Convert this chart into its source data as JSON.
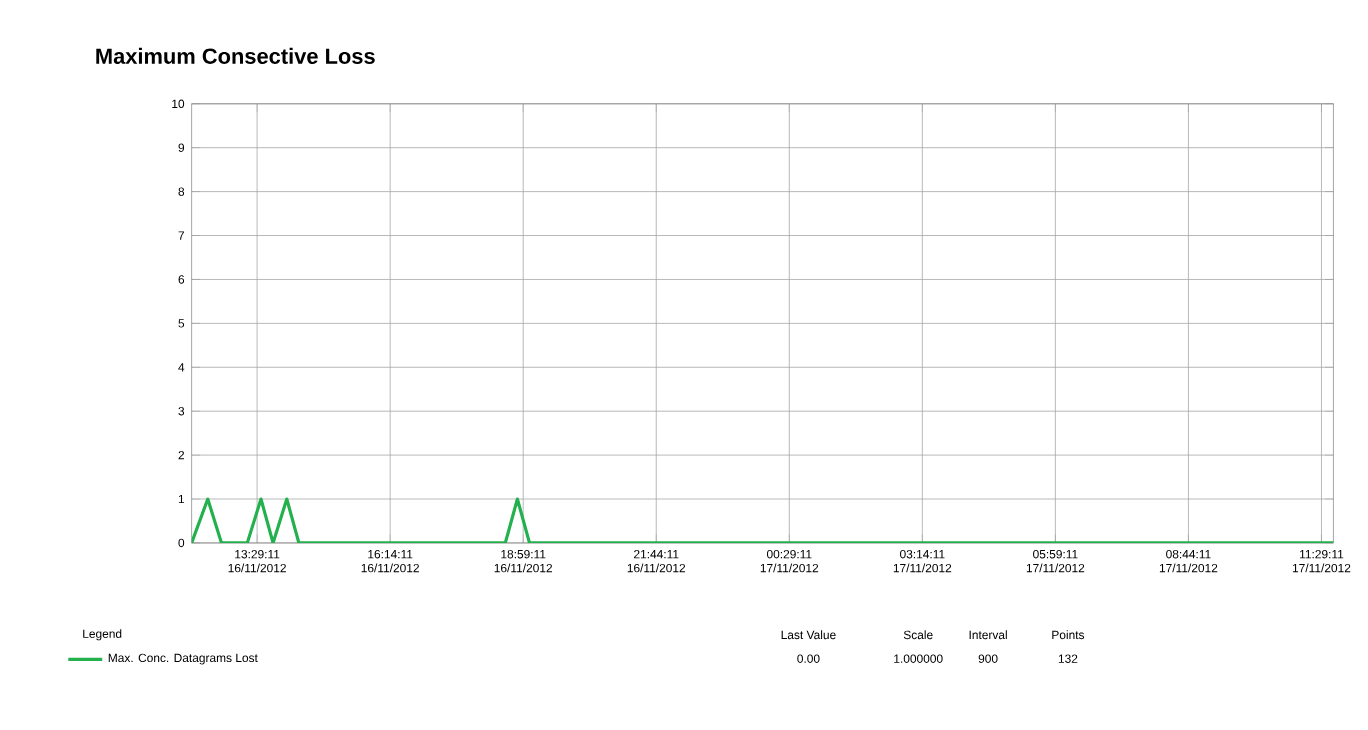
{
  "chart_data": {
    "type": "line",
    "title": "Maximum Consective Loss",
    "x": [
      "2012-11-16T12:08",
      "2012-11-16T12:28",
      "2012-11-16T12:45",
      "2012-11-16T13:17",
      "2012-11-16T13:34",
      "2012-11-16T13:49",
      "2012-11-16T14:06",
      "2012-11-16T14:21",
      "2012-11-16T18:37",
      "2012-11-16T18:52",
      "2012-11-16T19:07",
      "2012-11-17T11:44"
    ],
    "series": [
      {
        "name": "Max. Conc. Datagrams Lost",
        "color": "#22b14c",
        "values": [
          0,
          1,
          0,
          0,
          1,
          0,
          1,
          0,
          0,
          1,
          0,
          0
        ]
      }
    ],
    "xlim": [
      "2012-11-16T12:08",
      "2012-11-17T11:44"
    ],
    "xticks": [
      {
        "value": "2012-11-16T13:29:11",
        "label": "13:29:11 16/11/2012"
      },
      {
        "value": "2012-11-16T16:14:11",
        "label": "16:14:11 16/11/2012"
      },
      {
        "value": "2012-11-16T18:59:11",
        "label": "18:59:11 16/11/2012"
      },
      {
        "value": "2012-11-16T21:44:11",
        "label": "21:44:11 16/11/2012"
      },
      {
        "value": "2012-11-17T00:29:11",
        "label": "00:29:11 17/11/2012"
      },
      {
        "value": "2012-11-17T03:14:11",
        "label": "03:14:11 17/11/2012"
      },
      {
        "value": "2012-11-17T05:59:11",
        "label": "05:59:11 17/11/2012"
      },
      {
        "value": "2012-11-17T08:44:11",
        "label": "08:44:11 17/11/2012"
      },
      {
        "value": "2012-11-17T11:29:11",
        "label": "11:29:11 17/11/2012"
      }
    ],
    "ylim": [
      0,
      10
    ],
    "yticks": [
      0,
      1,
      2,
      3,
      4,
      5,
      6,
      7,
      8,
      9,
      10
    ],
    "grid": true,
    "legend": "bottom",
    "marker": "none",
    "line_style": "solid",
    "annotations": [
      "Legend",
      "Last Value",
      "Scale",
      "Interval",
      "Points",
      "0.00",
      "1.000000",
      "900",
      "132"
    ]
  }
}
